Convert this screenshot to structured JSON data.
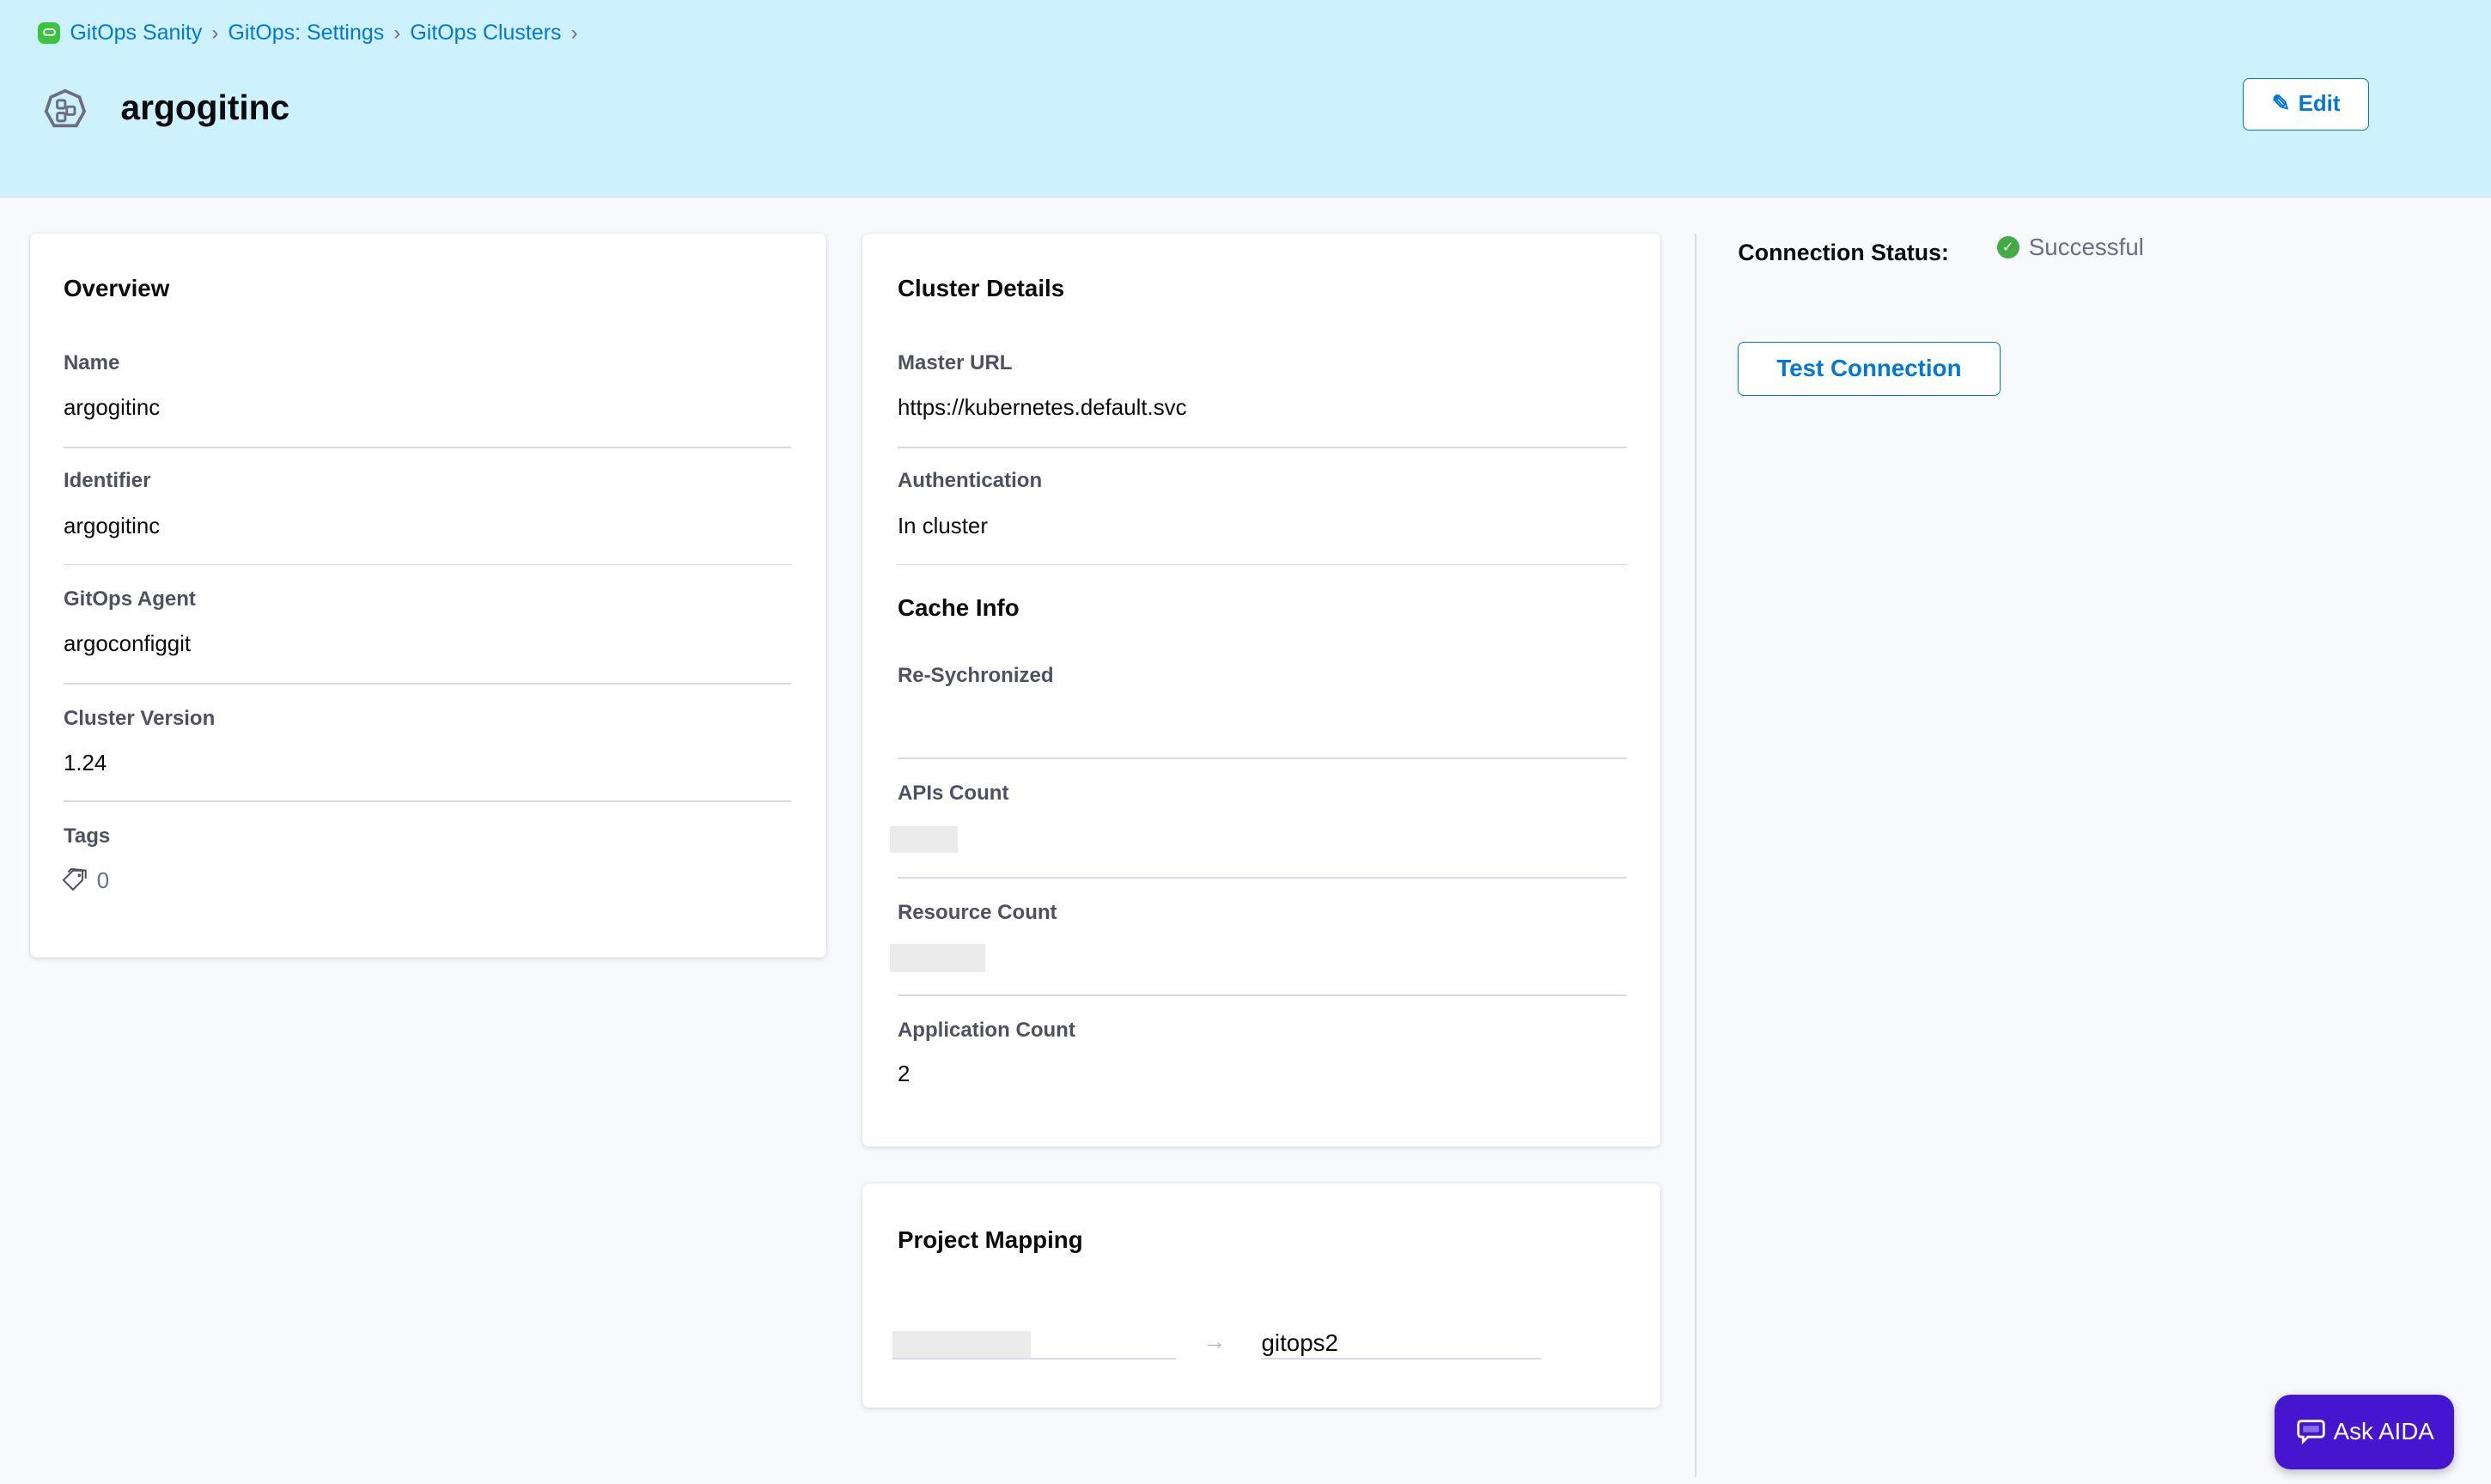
{
  "breadcrumb": [
    {
      "label": "GitOps Sanity"
    },
    {
      "label": "GitOps: Settings"
    },
    {
      "label": "GitOps Clusters"
    }
  ],
  "header": {
    "title": "argogitinc",
    "edit_label": "Edit"
  },
  "overview": {
    "title": "Overview",
    "fields": [
      {
        "label": "Name",
        "value": "argogitinc"
      },
      {
        "label": "Identifier",
        "value": "argogitinc"
      },
      {
        "label": "GitOps Agent",
        "value": "argoconfiggit"
      },
      {
        "label": "Cluster Version",
        "value": "1.24"
      },
      {
        "label": "Tags",
        "value": "0"
      }
    ]
  },
  "cluster_details": {
    "title": "Cluster Details",
    "master_url_label": "Master URL",
    "master_url": "https://kubernetes.default.svc",
    "auth_label": "Authentication",
    "auth": "In cluster"
  },
  "cache_info": {
    "title": "Cache Info",
    "resync_label": "Re-Sychronized",
    "apis_label": "APIs Count",
    "resource_label": "Resource Count",
    "app_label": "Application Count",
    "app_count": "2"
  },
  "project_mapping": {
    "title": "Project Mapping",
    "target": "gitops2"
  },
  "connection": {
    "label": "Connection Status:",
    "status": "Successful",
    "status_color": "#42ab45",
    "test_label": "Test Connection"
  },
  "aida": {
    "label": "Ask AIDA",
    "color": "#4515cf"
  },
  "colors": {
    "accent": "#0278d5",
    "header_bg": "#cdf2fd"
  }
}
